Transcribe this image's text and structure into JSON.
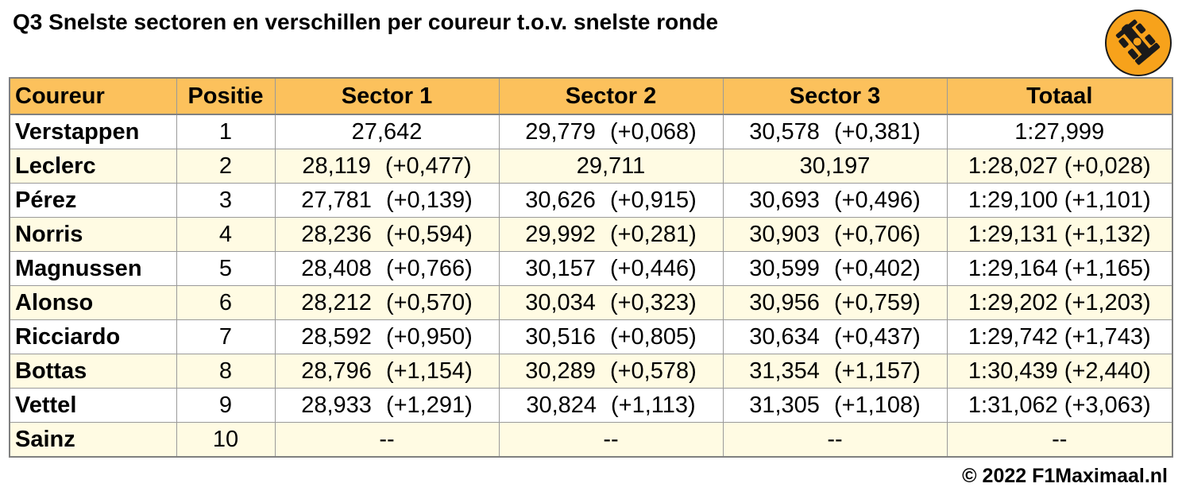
{
  "title": "Q3 Snelste sectoren en verschillen per coureur t.o.v. snelste ronde",
  "logo": {
    "icon": "f1-car-icon",
    "color": "#f7a21b"
  },
  "table": {
    "headers": {
      "driver": "Coureur",
      "position": "Positie",
      "sector1": "Sector 1",
      "sector2": "Sector 2",
      "sector3": "Sector 3",
      "total": "Totaal"
    },
    "rows": [
      {
        "driver": "Verstappen",
        "position": "1",
        "s1": {
          "time": "27,642",
          "gap": ""
        },
        "s2": {
          "time": "29,779",
          "gap": "(+0,068)"
        },
        "s3": {
          "time": "30,578",
          "gap": "(+0,381)"
        },
        "total": {
          "time": "1:27,999",
          "gap": ""
        }
      },
      {
        "driver": "Leclerc",
        "position": "2",
        "s1": {
          "time": "28,119",
          "gap": "(+0,477)"
        },
        "s2": {
          "time": "29,711",
          "gap": ""
        },
        "s3": {
          "time": "30,197",
          "gap": ""
        },
        "total": {
          "time": "1:28,027",
          "gap": "(+0,028)"
        }
      },
      {
        "driver": "Pérez",
        "position": "3",
        "s1": {
          "time": "27,781",
          "gap": "(+0,139)"
        },
        "s2": {
          "time": "30,626",
          "gap": "(+0,915)"
        },
        "s3": {
          "time": "30,693",
          "gap": "(+0,496)"
        },
        "total": {
          "time": "1:29,100",
          "gap": "(+1,101)"
        }
      },
      {
        "driver": "Norris",
        "position": "4",
        "s1": {
          "time": "28,236",
          "gap": "(+0,594)"
        },
        "s2": {
          "time": "29,992",
          "gap": "(+0,281)"
        },
        "s3": {
          "time": "30,903",
          "gap": "(+0,706)"
        },
        "total": {
          "time": "1:29,131",
          "gap": "(+1,132)"
        }
      },
      {
        "driver": "Magnussen",
        "position": "5",
        "s1": {
          "time": "28,408",
          "gap": "(+0,766)"
        },
        "s2": {
          "time": "30,157",
          "gap": "(+0,446)"
        },
        "s3": {
          "time": "30,599",
          "gap": "(+0,402)"
        },
        "total": {
          "time": "1:29,164",
          "gap": "(+1,165)"
        }
      },
      {
        "driver": "Alonso",
        "position": "6",
        "s1": {
          "time": "28,212",
          "gap": "(+0,570)"
        },
        "s2": {
          "time": "30,034",
          "gap": "(+0,323)"
        },
        "s3": {
          "time": "30,956",
          "gap": "(+0,759)"
        },
        "total": {
          "time": "1:29,202",
          "gap": "(+1,203)"
        }
      },
      {
        "driver": "Ricciardo",
        "position": "7",
        "s1": {
          "time": "28,592",
          "gap": "(+0,950)"
        },
        "s2": {
          "time": "30,516",
          "gap": "(+0,805)"
        },
        "s3": {
          "time": "30,634",
          "gap": "(+0,437)"
        },
        "total": {
          "time": "1:29,742",
          "gap": "(+1,743)"
        }
      },
      {
        "driver": "Bottas",
        "position": "8",
        "s1": {
          "time": "28,796",
          "gap": "(+1,154)"
        },
        "s2": {
          "time": "30,289",
          "gap": "(+0,578)"
        },
        "s3": {
          "time": "31,354",
          "gap": "(+1,157)"
        },
        "total": {
          "time": "1:30,439",
          "gap": "(+2,440)"
        }
      },
      {
        "driver": "Vettel",
        "position": "9",
        "s1": {
          "time": "28,933",
          "gap": "(+1,291)"
        },
        "s2": {
          "time": "30,824",
          "gap": "(+1,113)"
        },
        "s3": {
          "time": "31,305",
          "gap": "(+1,108)"
        },
        "total": {
          "time": "1:31,062",
          "gap": "(+3,063)"
        }
      },
      {
        "driver": "Sainz",
        "position": "10",
        "s1": {
          "time": "--",
          "gap": ""
        },
        "s2": {
          "time": "--",
          "gap": ""
        },
        "s3": {
          "time": "--",
          "gap": ""
        },
        "total": {
          "time": "--",
          "gap": ""
        }
      }
    ]
  },
  "footer": "© 2022 F1Maximaal.nl",
  "colors": {
    "header_bg": "#fcc15c",
    "alt_row_bg": "#fffbe3",
    "border": "#9a9a9a"
  }
}
